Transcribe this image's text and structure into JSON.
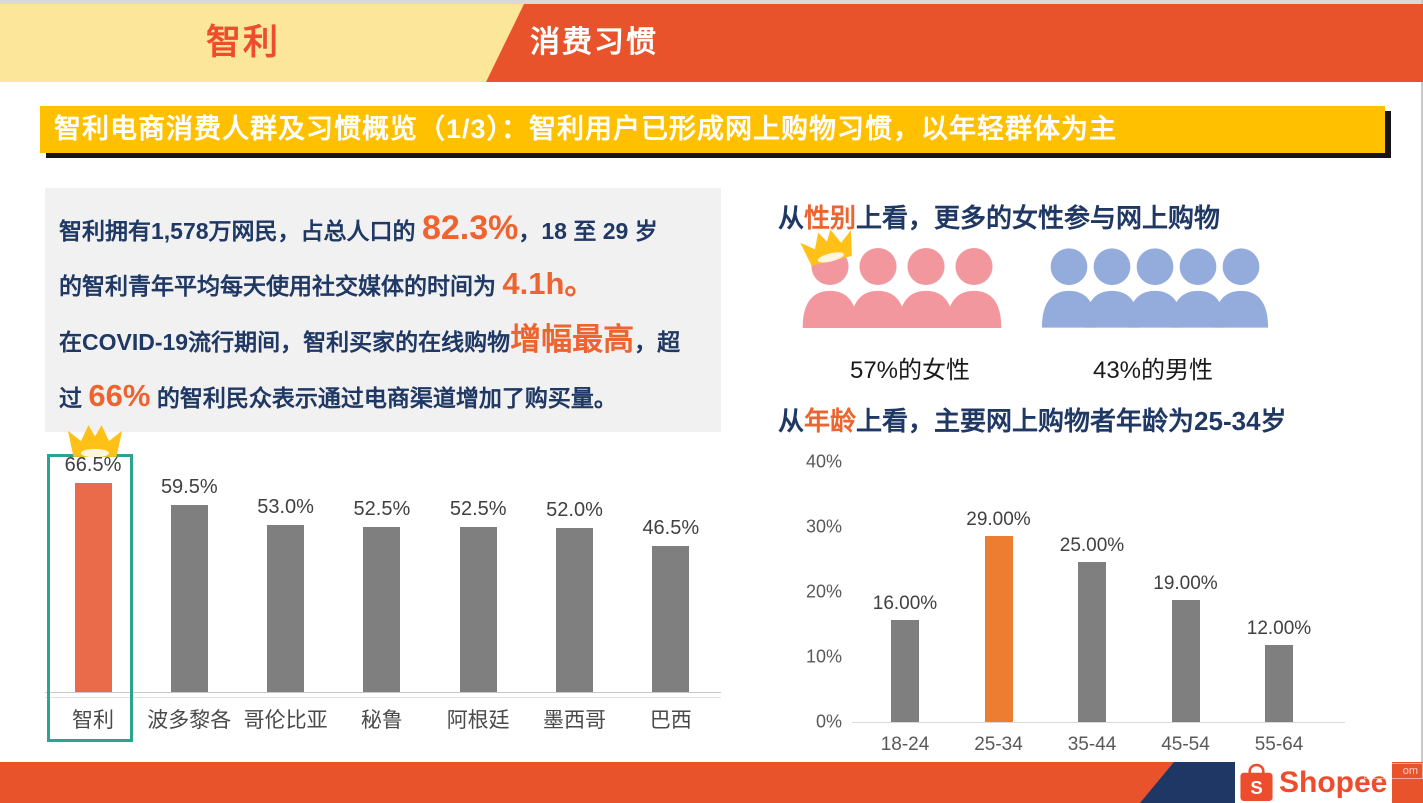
{
  "header": {
    "country_tab": "智利",
    "section_tab": "消费习惯"
  },
  "title_bar": "智利电商消费人群及习惯概览（1/3）：智利用户已形成网上购物习惯，以年轻群体为主",
  "intro": {
    "lines": [
      {
        "pre": "智利拥有1,578万网民，占总人口的 ",
        "em": "82.3%",
        "post": "，18 至 29 岁"
      },
      {
        "pre": "的智利青年平均每天使用社交媒体的时间为 ",
        "em": "4.1h。",
        "post": ""
      },
      {
        "pre": "在COVID-19流行期间，智利买家的在线购物",
        "em": "增幅最高",
        "post": "，超"
      },
      {
        "pre": "过 ",
        "em": "66%",
        "post": " 的智利民众表示通过电商渠道增加了购买量。"
      }
    ]
  },
  "gender": {
    "title_pre": "从",
    "title_em": "性别",
    "title_post": "上看，更多的女性参与网上购物",
    "female_label": "57%的女性",
    "male_label": "43%的男性",
    "female_icon_count": 4,
    "male_icon_count": 5
  },
  "age": {
    "title_pre": "从",
    "title_em": "年龄",
    "title_post": "上看，主要网上购物者年龄为25-34岁"
  },
  "footer": {
    "brand": "Shopee",
    "brand_initial": "S",
    "watermark": "om"
  },
  "chart_data": [
    {
      "id": "country_online_purchase_growth",
      "type": "bar",
      "categories": [
        "智利",
        "波多黎各",
        "哥伦比亚",
        "秘鲁",
        "阿根廷",
        "墨西哥",
        "巴西"
      ],
      "values": [
        66.5,
        59.5,
        53.0,
        52.5,
        52.5,
        52.0,
        46.5
      ],
      "labels": [
        "66.5%",
        "59.5%",
        "53.0%",
        "52.5%",
        "52.5%",
        "52.0%",
        "46.5%"
      ],
      "highlight_index": 0,
      "highlight_color": "#E96B4A",
      "bar_color": "#7F7F7F",
      "ylim": [
        0,
        70
      ],
      "grid": false,
      "legend": "none",
      "annotations": [
        "crown above leader bar",
        "teal outline box around 智利 column"
      ]
    },
    {
      "id": "online_shopper_age_distribution",
      "type": "bar",
      "categories": [
        "18-24",
        "25-34",
        "35-44",
        "45-54",
        "55-64"
      ],
      "values": [
        16,
        29,
        25,
        19,
        12
      ],
      "labels": [
        "16.00%",
        "29.00%",
        "25.00%",
        "19.00%",
        "12.00%"
      ],
      "highlight_index": 1,
      "highlight_color": "#ED7D31",
      "bar_color": "#7F7F7F",
      "yticks": [
        "0%",
        "10%",
        "20%",
        "30%",
        "40%"
      ],
      "ylim": [
        0,
        40
      ],
      "grid": false,
      "legend": "none"
    }
  ],
  "colors": {
    "cream": "#FCE699",
    "orange": "#E8532C",
    "brand": "#EE4D2D",
    "gold": "#FFC000",
    "navy": "#1F3864",
    "em_orange": "#ED6430",
    "teal": "#2AA491",
    "pink": "#F2979D",
    "blue": "#94ACDC",
    "footer_navy": "#1E3765",
    "crown_gold": "#FFC117"
  }
}
